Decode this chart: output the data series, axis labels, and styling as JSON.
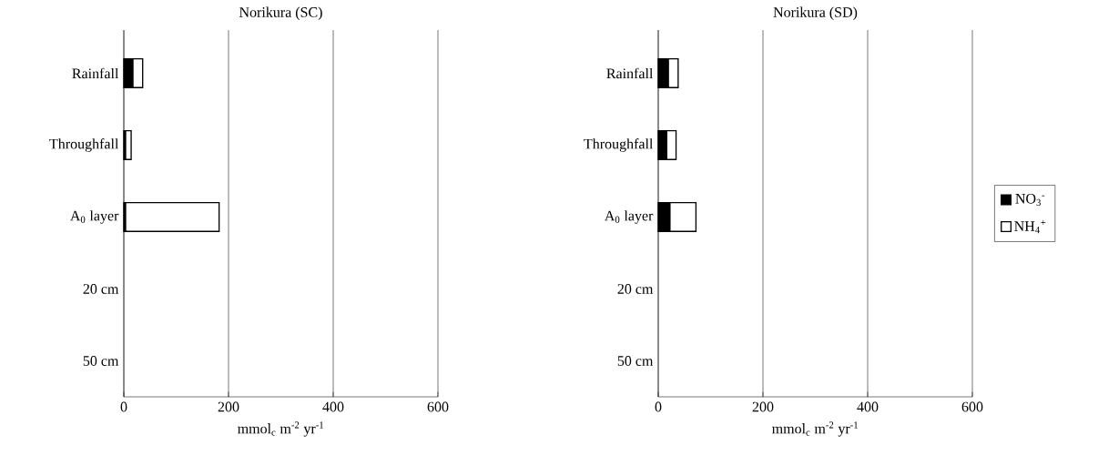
{
  "chart_data": [
    {
      "type": "bar",
      "orientation": "horizontal",
      "stacked": true,
      "title": "Norikura (SC)",
      "xlabel": "mmol$_{c}$ m$^{-2}$ yr$^{-1}$",
      "categories": [
        "Rainfall",
        "Throughfall",
        "A$_{0}$ layer",
        "20 cm",
        "50 cm"
      ],
      "series": [
        {
          "color": "#000000",
          "values": [
            17,
            3,
            3,
            null,
            null
          ]
        },
        {
          "color": "#ffffff",
          "values": [
            19,
            11,
            179,
            null,
            null
          ]
        }
      ],
      "xlim": [
        0,
        600
      ],
      "xticks": [
        0,
        200,
        400,
        600
      ],
      "grid": "x",
      "legend": false
    },
    {
      "type": "bar",
      "orientation": "horizontal",
      "stacked": true,
      "title": "Norikura (SD)",
      "xlabel": "mmol$_{c}$ m$^{-2}$ yr$^{-1}$",
      "categories": [
        "Rainfall",
        "Throughfall",
        "A$_{0}$ layer",
        "20 cm",
        "50 cm"
      ],
      "series": [
        {
          "name": "NO$_{3}$$^{-}$",
          "color": "#000000",
          "values": [
            19,
            16,
            22,
            null,
            null
          ]
        },
        {
          "name": "NH$_{4}$$^{+}$",
          "color": "#ffffff",
          "values": [
            19,
            18,
            50,
            null,
            null
          ]
        }
      ],
      "xlim": [
        0,
        600
      ],
      "xticks": [
        0,
        200,
        400,
        600
      ],
      "grid": "x",
      "legend": "right"
    }
  ]
}
